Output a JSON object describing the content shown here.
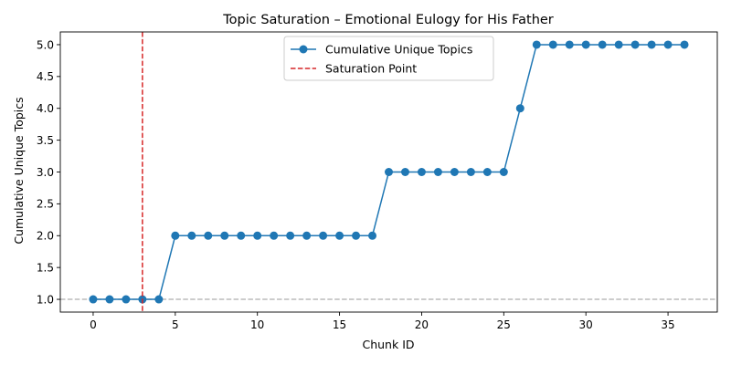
{
  "chart_data": {
    "type": "line",
    "title": "Topic Saturation – Emotional Eulogy for His Father",
    "xlabel": "Chunk ID",
    "ylabel": "Cumulative Unique Topics",
    "xlim": [
      -2,
      38
    ],
    "ylim": [
      0.8,
      5.2
    ],
    "x_ticks": [
      "0",
      "5",
      "10",
      "15",
      "20",
      "25",
      "30",
      "35"
    ],
    "y_ticks": [
      "1.0",
      "1.5",
      "2.0",
      "2.5",
      "3.0",
      "3.5",
      "4.0",
      "4.5",
      "5.0"
    ],
    "series": [
      {
        "name": "Cumulative Unique Topics",
        "color": "#1f77b4",
        "marker": "circle",
        "x": [
          0,
          1,
          2,
          3,
          4,
          5,
          6,
          7,
          8,
          9,
          10,
          11,
          12,
          13,
          14,
          15,
          16,
          17,
          18,
          19,
          20,
          21,
          22,
          23,
          24,
          25,
          26,
          27,
          28,
          29,
          30,
          31,
          32,
          33,
          34,
          35,
          36
        ],
        "y": [
          1,
          1,
          1,
          1,
          1,
          2,
          2,
          2,
          2,
          2,
          2,
          2,
          2,
          2,
          2,
          2,
          2,
          2,
          3,
          3,
          3,
          3,
          3,
          3,
          3,
          3,
          4,
          5,
          5,
          5,
          5,
          5,
          5,
          5,
          5,
          5,
          5
        ]
      }
    ],
    "vlines": [
      {
        "name": "Saturation Point",
        "x": 3,
        "color": "#d62728",
        "style": "dashed"
      }
    ],
    "hlines": [
      {
        "y": 1,
        "color": "#aaaaaa",
        "style": "dashed"
      }
    ],
    "legend": {
      "position": "upper-center",
      "entries": [
        "Cumulative Unique Topics",
        "Saturation Point"
      ]
    },
    "grid": false
  }
}
